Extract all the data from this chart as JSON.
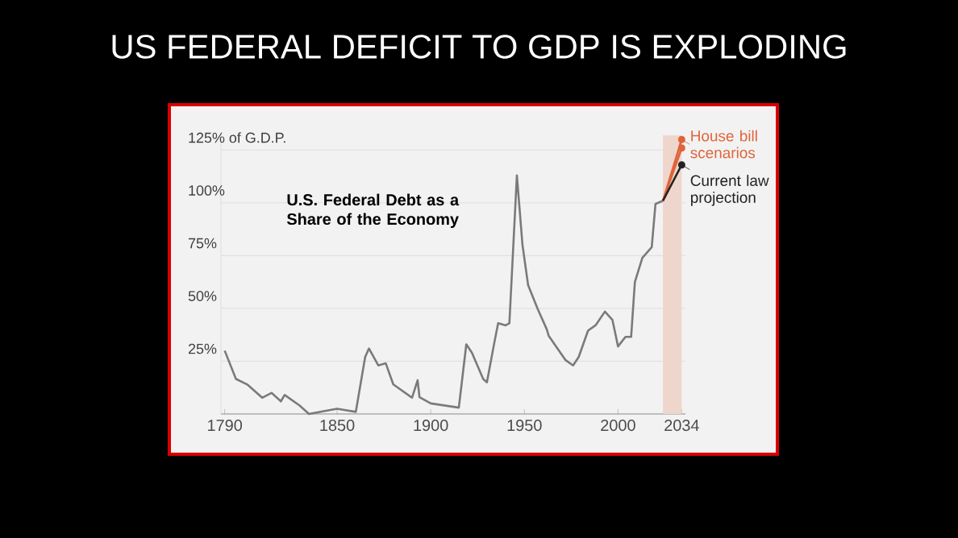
{
  "chart_data": {
    "type": "line",
    "title": "US FEDERAL DEFICIT TO GDP IS EXPLODING",
    "subtitle": "U.S. Federal Debt as a Share of the Economy",
    "xlim": [
      1788,
      2036
    ],
    "ylim": [
      0,
      132
    ],
    "xticks": [
      1790,
      1850,
      1900,
      1950,
      2000,
      2034
    ],
    "yticks": [
      {
        "value": 25,
        "label": "25%"
      },
      {
        "value": 50,
        "label": "50%"
      },
      {
        "value": 75,
        "label": "75%"
      },
      {
        "value": 100,
        "label": "100%"
      },
      {
        "value": 125,
        "label": "125% of G.D.P."
      }
    ],
    "grid": "y",
    "bands": [
      {
        "axis": "x",
        "from": 2024,
        "to": 2034,
        "color": "#efd6cc"
      }
    ],
    "series": [
      {
        "color": "#7a7a7a",
        "marker": "none",
        "x": [
          1790,
          1796,
          1802,
          1810,
          1815,
          1820,
          1822,
          1830,
          1835,
          1850,
          1860,
          1865,
          1867,
          1872,
          1876,
          1880,
          1890,
          1893,
          1894,
          1900,
          1915,
          1919,
          1922,
          1928,
          1930,
          1934,
          1936,
          1940,
          1942,
          1946,
          1949,
          1952,
          1957,
          1962,
          1963,
          1972,
          1976,
          1979,
          1984,
          1988,
          1993,
          1997,
          2000,
          2004,
          2007,
          2009,
          2013,
          2018,
          2020,
          2024
        ],
        "values": [
          30,
          16.6,
          14,
          7.7,
          10,
          6,
          9,
          4,
          0,
          2.5,
          1,
          27,
          31,
          23,
          24,
          14,
          7.7,
          16,
          8,
          5,
          3,
          33,
          29,
          16.6,
          15,
          34,
          43,
          42,
          43,
          113,
          80,
          61,
          50,
          40,
          37,
          25.5,
          23,
          27,
          39.5,
          42,
          48.5,
          44.6,
          32,
          36.5,
          36.5,
          62.5,
          74,
          79,
          99.5,
          101
        ]
      },
      {
        "name": "House bill scenarios",
        "color": "#e0633a",
        "marker": "circle",
        "x": [
          2024,
          2034
        ],
        "values": [
          101,
          130
        ]
      },
      {
        "color": "#e0633a",
        "marker": "circle",
        "x": [
          2024,
          2034
        ],
        "values": [
          101,
          126
        ]
      },
      {
        "name": "Current law projection",
        "color": "#222222",
        "marker": "circle",
        "x": [
          2024,
          2034
        ],
        "values": [
          101,
          118
        ]
      }
    ]
  }
}
